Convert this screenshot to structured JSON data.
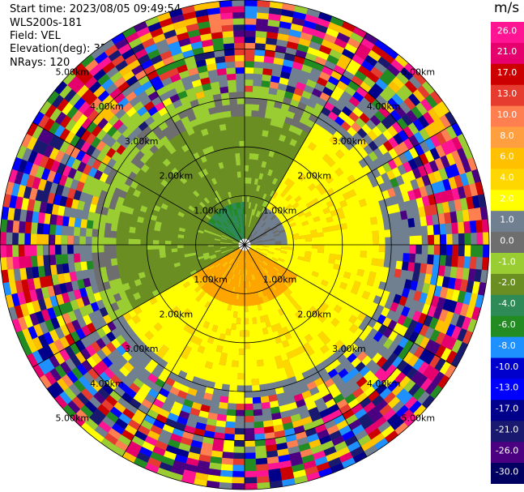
{
  "header": {
    "start_time": "Start time: 2023/08/05 09:49:54",
    "instrument": "WLS200s-181",
    "field": "Field: VEL",
    "elevation": "Elevation(deg): 35.30",
    "nrays": "NRays: 120"
  },
  "chart_data": {
    "type": "heatmap",
    "projection": "polar",
    "range_rings_km": [
      1,
      2,
      3,
      4,
      5
    ],
    "range_labels": [
      "1.00km",
      "2.00km",
      "3.00km",
      "4.00km",
      "5.00km"
    ],
    "max_range_km": 5.0,
    "spoke_spacing_deg": 30,
    "colorbar": {
      "unit": "m/s",
      "ticks": [
        "26.0",
        "21.0",
        "17.0",
        "13.0",
        "10.0",
        "8.0",
        "6.0",
        "4.0",
        "2.0",
        "1.0",
        "0.0",
        "-1.0",
        "-2.0",
        "-4.0",
        "-6.0",
        "-8.0",
        "-10.0",
        "-13.0",
        "-17.0",
        "-21.0",
        "-26.0",
        "-30.0"
      ],
      "colors": [
        "#ff1493",
        "#e6006e",
        "#cc0000",
        "#e63c2f",
        "#ff7f50",
        "#ff9f40",
        "#ffc000",
        "#ffd700",
        "#ffff00",
        "#708090",
        "#6e6e6e",
        "#9acd32",
        "#6b8e23",
        "#2e8b57",
        "#228b22",
        "#1e90ff",
        "#0000cd",
        "#0000ff",
        "#00008b",
        "#191970",
        "#4b0082",
        "#000060"
      ]
    }
  }
}
